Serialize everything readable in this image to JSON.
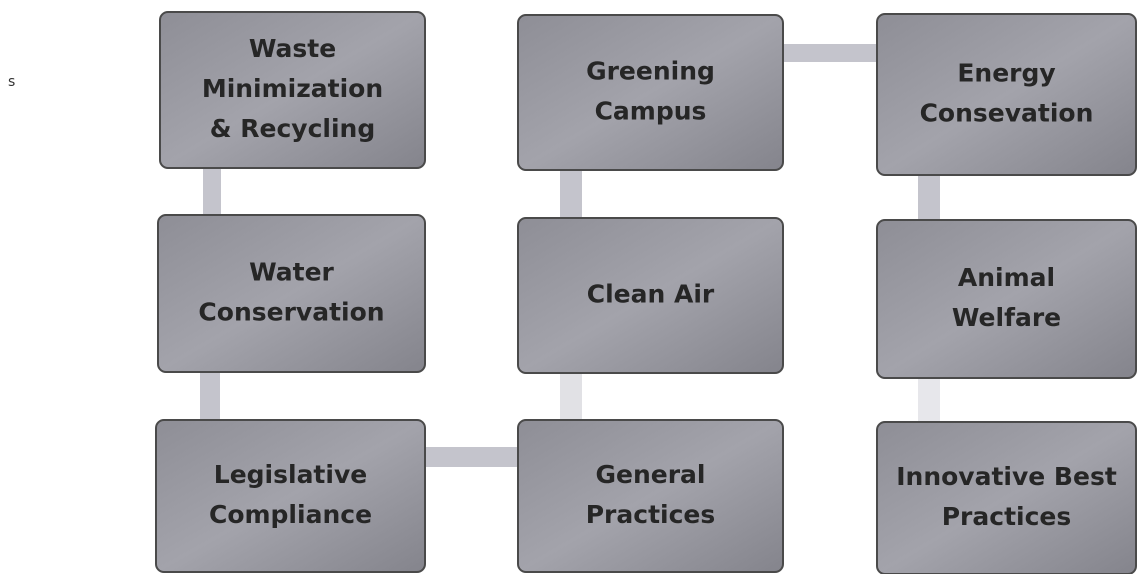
{
  "stray_text": "s",
  "nodes": [
    {
      "lines": [
        "Waste",
        "Minimization",
        "& Recycling"
      ]
    },
    {
      "lines": [
        "Greening",
        "Campus"
      ]
    },
    {
      "lines": [
        "Energy",
        "Consevation"
      ]
    },
    {
      "lines": [
        "Water",
        "Conservation"
      ]
    },
    {
      "lines": [
        "Clean Air"
      ]
    },
    {
      "lines": [
        "Animal",
        "Welfare"
      ]
    },
    {
      "lines": [
        "Legislative",
        "Compliance"
      ]
    },
    {
      "lines": [
        "General",
        "Practices"
      ]
    },
    {
      "lines": [
        "Innovative Best",
        "Practices"
      ]
    }
  ]
}
